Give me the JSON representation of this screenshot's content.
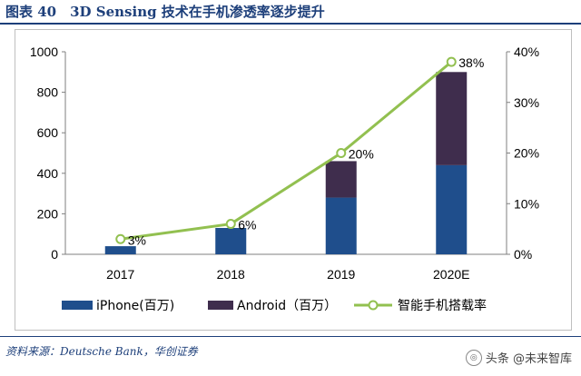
{
  "figure_title": "图表 40　3D Sensing 技术在手机渗透率逐步提升",
  "source_text": "资料来源：Deutsche Bank，华创证券",
  "watermark_text": "头条 @未来智库",
  "colors": {
    "iphone": "#1f4e8c",
    "android": "#3f2d4d",
    "line": "#92c050",
    "title": "#1d3f7a",
    "grid": "#d9d9d9"
  },
  "chart_data": {
    "type": "bar",
    "stacked": true,
    "title": "3D Sensing 技术在手机渗透率逐步提升",
    "categories": [
      "2017",
      "2018",
      "2019",
      "2020E"
    ],
    "series": [
      {
        "name": "iPhone(百万)",
        "type": "bar",
        "axis": "left",
        "values": [
          40,
          130,
          280,
          440
        ]
      },
      {
        "name": "Android（百万）",
        "type": "bar",
        "axis": "left",
        "values": [
          0,
          0,
          180,
          460
        ]
      },
      {
        "name": "智能手机搭载率",
        "type": "line",
        "axis": "right",
        "values": [
          3,
          6,
          20,
          38
        ],
        "unit": "%"
      }
    ],
    "data_labels": [
      "3%",
      "6%",
      "20%",
      "38%"
    ],
    "y_left": {
      "min": 0,
      "max": 1000,
      "ticks": [
        "0",
        "200",
        "400",
        "600",
        "800",
        "1000"
      ]
    },
    "y_right": {
      "min": 0,
      "max": 40,
      "ticks": [
        "0%",
        "10%",
        "20%",
        "30%",
        "40%"
      ]
    },
    "legend_position": "bottom",
    "grid": false
  }
}
